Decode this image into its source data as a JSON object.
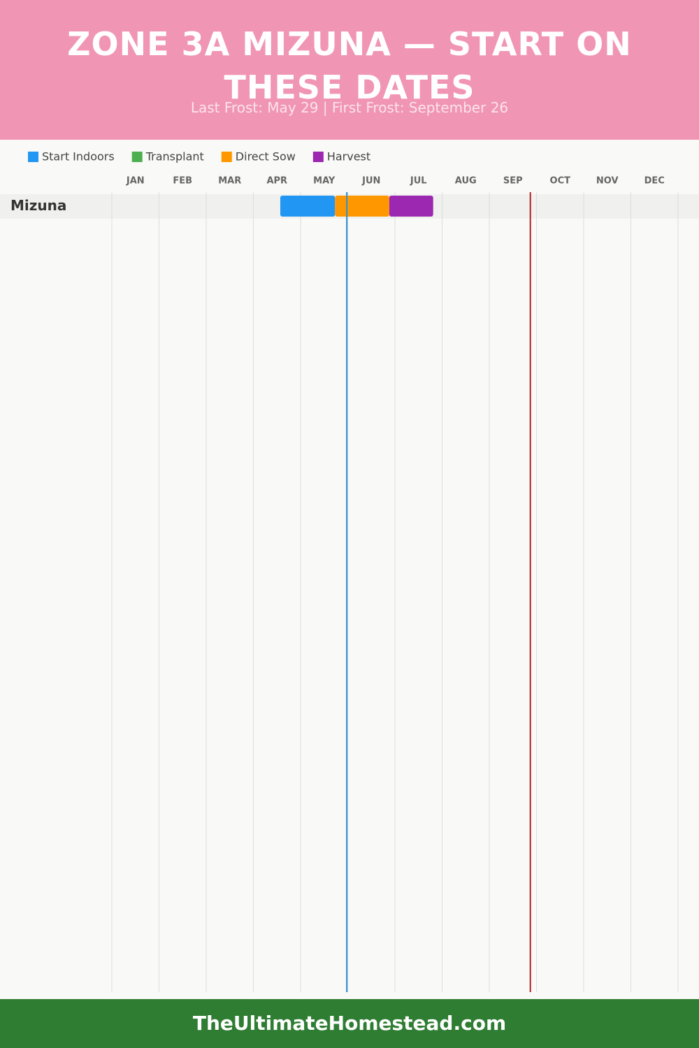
{
  "chart_data": {
    "type": "gantt",
    "title": "ZONE 3A MIZUNA — START ON THESE DATES",
    "subtitle": "Last Frost: May 29 | First Frost: September 26",
    "categories": [
      "Mizuna"
    ],
    "series": [
      {
        "name": "Start Indoors",
        "color": "#2196f3",
        "values": [
          [
            3.57,
            4.73
          ]
        ]
      },
      {
        "name": "Transplant",
        "color": "#4caf50",
        "values": [
          null
        ]
      },
      {
        "name": "Direct Sow",
        "color": "#ff9800",
        "values": [
          [
            4.73,
            5.88
          ]
        ]
      },
      {
        "name": "Harvest",
        "color": "#9c27b0",
        "values": [
          [
            5.88,
            6.81
          ]
        ]
      }
    ],
    "xlim": [
      0,
      12
    ],
    "xticks": [
      {
        "value": 0,
        "label": "JAN"
      },
      {
        "value": 1,
        "label": "FEB"
      },
      {
        "value": 2,
        "label": "MAR"
      },
      {
        "value": 3,
        "label": "APR"
      },
      {
        "value": 4,
        "label": "MAY"
      },
      {
        "value": 5,
        "label": "JUN"
      },
      {
        "value": 6,
        "label": "JUL"
      },
      {
        "value": 7,
        "label": "AUG"
      },
      {
        "value": 8,
        "label": "SEP"
      },
      {
        "value": 9,
        "label": "OCT"
      },
      {
        "value": 10,
        "label": "NOV"
      },
      {
        "value": 11,
        "label": "DEC"
      }
    ],
    "frost_lines": [
      {
        "value": 4.98,
        "color": "#2a8fd6"
      },
      {
        "value": 8.87,
        "color": "#b22222"
      }
    ],
    "grid": true,
    "footer": "TheUltimateHomestead.com"
  }
}
